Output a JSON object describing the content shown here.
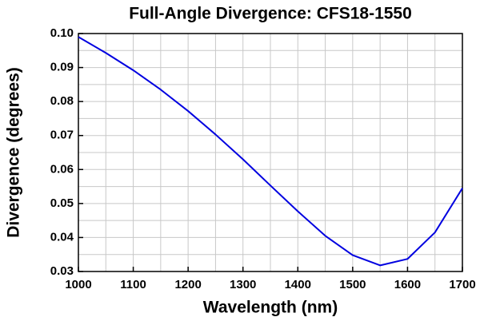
{
  "chart_data": {
    "type": "line",
    "title": "Full-Angle Divergence: CFS18-1550",
    "x_label": "Wavelength (nm)",
    "y_label": "Divergence (degrees)",
    "x": [
      1000,
      1050,
      1100,
      1150,
      1200,
      1250,
      1300,
      1350,
      1400,
      1450,
      1500,
      1550,
      1600,
      1650,
      1700
    ],
    "values": [
      0.099,
      0.0943,
      0.0892,
      0.0835,
      0.0772,
      0.0703,
      0.063,
      0.0553,
      0.0477,
      0.0405,
      0.0348,
      0.0318,
      0.0337,
      0.0415,
      0.0545
    ],
    "color": "#0000e0",
    "xlim": [
      1000,
      1700
    ],
    "xticks": [
      1000,
      1100,
      1200,
      1300,
      1400,
      1500,
      1600,
      1700
    ],
    "ylim": [
      0.03,
      0.1
    ],
    "yticks": [
      0.03,
      0.04,
      0.05,
      0.06,
      0.07,
      0.08,
      0.09,
      {
        "value": 0.1,
        "label": "0.10"
      }
    ],
    "grid": true,
    "minor_grid": true
  }
}
